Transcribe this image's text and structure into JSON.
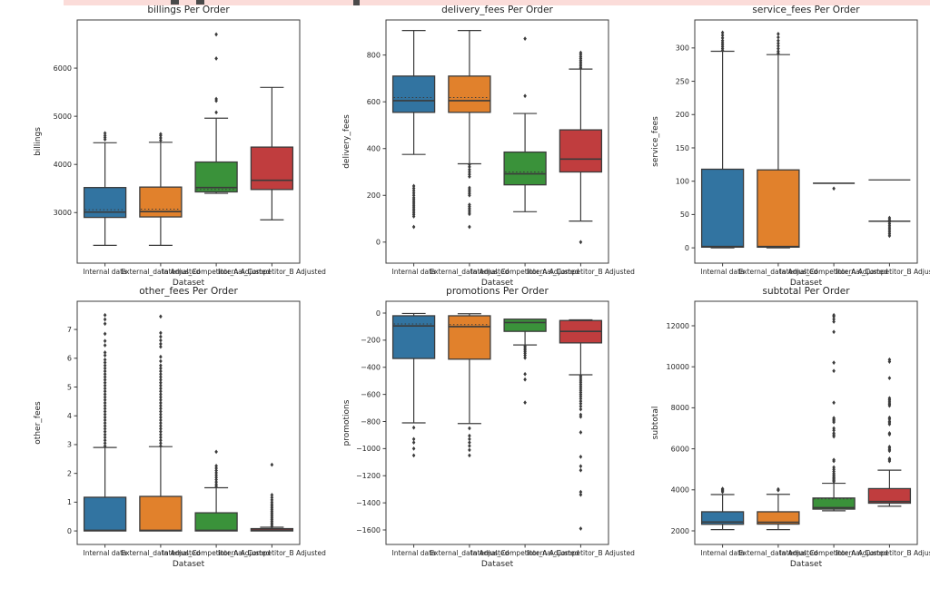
{
  "banner": {
    "color": "#fbdcd9",
    "glyphs": [
      {
        "x": 118,
        "w": 9,
        "h": 5
      },
      {
        "x": 146,
        "w": 9,
        "h": 5
      },
      {
        "x": 319,
        "w": 7,
        "h": 6
      }
    ]
  },
  "figure": {
    "xlabel": "Dataset",
    "datasets": [
      "Internal data",
      "External_data Adjusted",
      "Internal_Competitor_A Adjusted",
      "Internal_Competitor_B Adjusted"
    ],
    "palette": [
      "#3274a1",
      "#e1812c",
      "#3a923a",
      "#c03d3e"
    ],
    "edge_color": "#3b3b3b",
    "spine_color": "#3c3c3c",
    "text_color": "#262626"
  },
  "chart_data": [
    {
      "type": "box",
      "title": "billings Per Order",
      "ylabel": "billings",
      "xlabel": "Dataset",
      "yticks": [
        3000,
        4000,
        5000,
        6000
      ],
      "ylim": [
        1950,
        7000
      ],
      "boxes": [
        {
          "whisker_low": 2320,
          "q1": 2900,
          "median": 3010,
          "q3": 3520,
          "whisker_high": 4450,
          "mean": 3060,
          "outliers": [
            4520,
            4560,
            4600,
            4650
          ]
        },
        {
          "whisker_low": 2320,
          "q1": 2910,
          "median": 3020,
          "q3": 3530,
          "whisker_high": 4460,
          "mean": 3070,
          "outliers": [
            4500,
            4550,
            4600,
            4630
          ]
        },
        {
          "whisker_low": 3400,
          "q1": 3430,
          "median": 3520,
          "q3": 4050,
          "whisker_high": 4960,
          "mean": 3480,
          "outliers": [
            5080,
            5320,
            5360,
            6200,
            6700
          ]
        },
        {
          "whisker_low": 2850,
          "q1": 3480,
          "median": 3670,
          "q3": 4360,
          "whisker_high": 5600,
          "outliers": []
        }
      ]
    },
    {
      "type": "box",
      "title": "delivery_fees Per Order",
      "ylabel": "delivery_fees",
      "xlabel": "Dataset",
      "yticks": [
        0,
        200,
        400,
        600,
        800
      ],
      "ylim": [
        -90,
        950
      ],
      "boxes": [
        {
          "whisker_low": 375,
          "q1": 555,
          "median": 605,
          "q3": 710,
          "whisker_high": 905,
          "mean": 618,
          "outliers": [
            65,
            110,
            118,
            126,
            134,
            142,
            150,
            158,
            166,
            174,
            182,
            190,
            200,
            210,
            220,
            230,
            240
          ]
        },
        {
          "whisker_low": 335,
          "q1": 555,
          "median": 605,
          "q3": 710,
          "whisker_high": 905,
          "mean": 618,
          "outliers": [
            65,
            120,
            128,
            136,
            144,
            152,
            160,
            200,
            208,
            216,
            224,
            232,
            280,
            290,
            300,
            310,
            322,
            332
          ]
        },
        {
          "whisker_low": 130,
          "q1": 245,
          "median": 292,
          "q3": 385,
          "whisker_high": 550,
          "mean": 300,
          "outliers": [
            625,
            870
          ]
        },
        {
          "whisker_low": 90,
          "q1": 300,
          "median": 355,
          "q3": 480,
          "whisker_high": 740,
          "outliers": [
            0,
            745,
            753,
            761,
            769,
            777,
            785,
            793,
            802,
            810
          ]
        }
      ]
    },
    {
      "type": "box",
      "title": "service_fees Per Order",
      "ylabel": "service_fees",
      "xlabel": "Dataset",
      "yticks": [
        0,
        50,
        100,
        150,
        200,
        250,
        300
      ],
      "ylim": [
        -23,
        342
      ],
      "boxes": [
        {
          "whisker_low": 0,
          "q1": 1,
          "median": 2,
          "q3": 118,
          "whisker_high": 295,
          "outliers": [
            296,
            299,
            302,
            305,
            308,
            311,
            315,
            319,
            323
          ]
        },
        {
          "whisker_low": 0,
          "q1": 1,
          "median": 2,
          "q3": 117,
          "whisker_high": 290,
          "outliers": [
            292,
            295,
            299,
            303,
            307,
            311,
            316,
            321
          ]
        },
        {
          "whisker_low": 97,
          "q1": 97,
          "median": 97,
          "q3": 97,
          "whisker_high": 97,
          "outliers": [
            89
          ]
        },
        {
          "whisker_low": 40,
          "q1": 40,
          "median": 40,
          "q3": 40,
          "whisker_high": 40,
          "extra_lines": [
            102
          ],
          "outliers": [
            18,
            21,
            24,
            27,
            30,
            33,
            36,
            39,
            42,
            45
          ]
        }
      ]
    },
    {
      "type": "box",
      "title": "other_fees Per Order",
      "ylabel": "other_fees",
      "xlabel": "Dataset",
      "yticks": [
        0,
        1,
        2,
        3,
        4,
        5,
        6,
        7
      ],
      "ylim": [
        -0.47,
        7.98
      ],
      "boxes": [
        {
          "whisker_low": 0,
          "q1": 0,
          "median": 0.02,
          "q3": 1.17,
          "whisker_high": 2.9,
          "outliers": [
            2.95,
            3.05,
            3.15,
            3.25,
            3.35,
            3.45,
            3.55,
            3.65,
            3.75,
            3.85,
            3.95,
            4.05,
            4.15,
            4.25,
            4.35,
            4.45,
            4.55,
            4.65,
            4.75,
            4.85,
            4.95,
            5.05,
            5.15,
            5.25,
            5.35,
            5.45,
            5.55,
            5.65,
            5.75,
            5.85,
            5.95,
            6.1,
            6.2,
            6.45,
            6.6,
            6.85,
            7.2,
            7.35,
            7.5
          ]
        },
        {
          "whisker_low": 0,
          "q1": 0,
          "median": 0.02,
          "q3": 1.2,
          "whisker_high": 2.93,
          "outliers": [
            2.95,
            3.05,
            3.15,
            3.25,
            3.35,
            3.45,
            3.55,
            3.65,
            3.75,
            3.85,
            3.95,
            4.05,
            4.15,
            4.25,
            4.35,
            4.45,
            4.55,
            4.65,
            4.75,
            4.85,
            4.95,
            5.05,
            5.15,
            5.25,
            5.35,
            5.45,
            5.55,
            5.65,
            5.75,
            5.9,
            6.05,
            6.4,
            6.5,
            6.62,
            6.75,
            6.88,
            7.45
          ]
        },
        {
          "whisker_low": 0,
          "q1": 0,
          "median": 0.02,
          "q3": 0.63,
          "whisker_high": 1.5,
          "outliers": [
            1.55,
            1.62,
            1.7,
            1.78,
            1.86,
            1.94,
            2.02,
            2.1,
            2.18,
            2.26,
            2.75
          ]
        },
        {
          "whisker_low": 0,
          "q1": 0,
          "median": 0.03,
          "q3": 0.08,
          "whisker_high": 0.13,
          "outliers": [
            0.15,
            0.21,
            0.27,
            0.33,
            0.39,
            0.45,
            0.51,
            0.57,
            0.63,
            0.69,
            0.75,
            0.81,
            0.87,
            0.93,
            1.0,
            1.08,
            1.16,
            1.25,
            2.3
          ]
        }
      ]
    },
    {
      "type": "box",
      "title": "promotions Per Order",
      "ylabel": "promotions",
      "xlabel": "Dataset",
      "yticks": [
        0,
        -200,
        -400,
        -600,
        -800,
        -1000,
        -1200,
        -1400,
        -1600
      ],
      "ylim": [
        -1707,
        87
      ],
      "boxes": [
        {
          "whisker_low": -810,
          "q1": -335,
          "median": -95,
          "q3": -20,
          "whisker_high": -3,
          "mean": -80,
          "outliers": [
            -845,
            -930,
            -955,
            -1000,
            -1050
          ]
        },
        {
          "whisker_low": -815,
          "q1": -340,
          "median": -100,
          "q3": -20,
          "whisker_high": -5,
          "mean": -85,
          "outliers": [
            -850,
            -905,
            -930,
            -955,
            -980,
            -1010,
            -1050
          ]
        },
        {
          "whisker_low": -235,
          "q1": -135,
          "median": -70,
          "q3": -45,
          "whisker_high": -45,
          "outliers": [
            -245,
            -258,
            -270,
            -283,
            -296,
            -312,
            -330,
            -450,
            -490,
            -660
          ]
        },
        {
          "whisker_low": -455,
          "q1": -220,
          "median": -135,
          "q3": -55,
          "whisker_high": -50,
          "outliers": [
            -465,
            -480,
            -495,
            -510,
            -525,
            -540,
            -555,
            -570,
            -585,
            -600,
            -615,
            -632,
            -650,
            -668,
            -688,
            -710,
            -750,
            -765,
            -880,
            -1060,
            -1130,
            -1160,
            -1320,
            -1340,
            -1590
          ]
        }
      ]
    },
    {
      "type": "box",
      "title": "subtotal Per Order",
      "ylabel": "subtotal",
      "xlabel": "Dataset",
      "yticks": [
        2000,
        4000,
        6000,
        8000,
        10000,
        12000
      ],
      "ylim": [
        1336,
        13195
      ],
      "boxes": [
        {
          "whisker_low": 2060,
          "q1": 2320,
          "median": 2430,
          "q3": 2930,
          "whisker_high": 3770,
          "outliers": [
            3900,
            3950,
            4000,
            4050
          ]
        },
        {
          "whisker_low": 2060,
          "q1": 2330,
          "median": 2420,
          "q3": 2930,
          "whisker_high": 3780,
          "outliers": [
            3980,
            4030
          ]
        },
        {
          "whisker_low": 2980,
          "q1": 3060,
          "median": 3130,
          "q3": 3600,
          "whisker_high": 4320,
          "mean": 3560,
          "outliers": [
            4400,
            4460,
            4520,
            4580,
            4650,
            4720,
            4800,
            4900,
            5000,
            5100,
            5400,
            5460,
            6600,
            6680,
            6760,
            6900,
            7000,
            7300,
            7360,
            7430,
            7500,
            8250,
            9800,
            10200,
            11700,
            12200,
            12320,
            12450,
            12520
          ]
        },
        {
          "whisker_low": 3200,
          "q1": 3350,
          "median": 3430,
          "q3": 4060,
          "whisker_high": 4960,
          "outliers": [
            5400,
            5460,
            5520,
            5900,
            5960,
            6030,
            6100,
            6700,
            6760,
            7200,
            7270,
            7340,
            7450,
            7520,
            8100,
            8170,
            8240,
            8320,
            8400,
            8470,
            9450,
            10250,
            10350
          ]
        }
      ]
    }
  ]
}
